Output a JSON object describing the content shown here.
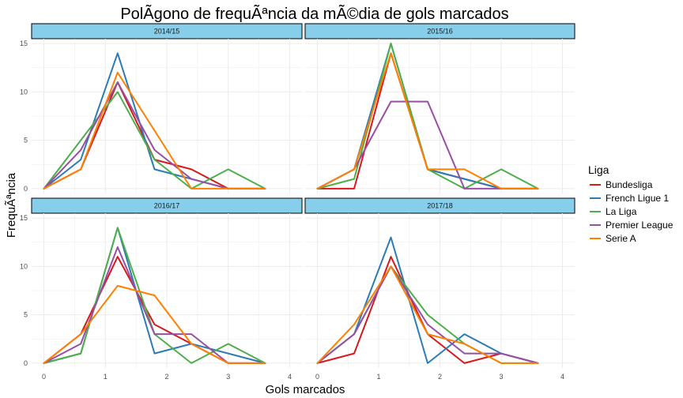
{
  "title": "PolÃ­gono de frequÃªncia da mÃ©dia de gols marcados",
  "xlabel": "Gols marcados",
  "ylabel": "FrequÃªncia",
  "legend": {
    "title": "Liga",
    "position": "right"
  },
  "colors": {
    "Bundesliga": "#d7191c",
    "French Ligue 1": "#2c7bb6",
    "La Liga": "#4daf4a",
    "Premier League": "#984ea3",
    "Serie A": "#ff7f00",
    "strip_fill": "#87ceeb",
    "grid": "#ebebeb"
  },
  "chart_data": {
    "type": "line",
    "facet": "season",
    "title": "PolÃ­gono de frequÃªncia da mÃ©dia de gols marcados",
    "xlabel": "Gols marcados",
    "ylabel": "FrequÃªncia",
    "xlim": [
      -0.2,
      4.2
    ],
    "ylim": [
      -0.5,
      15.5
    ],
    "x_ticks": [
      0,
      1,
      2,
      3,
      4
    ],
    "y_ticks": [
      0,
      5,
      10,
      15
    ],
    "grid": true,
    "x": [
      0,
      0.6,
      1.2,
      1.8,
      2.4,
      3.0,
      3.6
    ],
    "panels": [
      {
        "label": "2014/15",
        "series": [
          {
            "name": "Bundesliga",
            "values": [
              0,
              2,
              11,
              3,
              2,
              0,
              0
            ]
          },
          {
            "name": "French Ligue 1",
            "values": [
              0,
              3,
              14,
              2,
              1,
              0,
              0
            ]
          },
          {
            "name": "La Liga",
            "values": [
              0,
              5,
              10,
              3,
              0,
              2,
              0
            ]
          },
          {
            "name": "Premier League",
            "values": [
              0,
              4,
              11,
              4,
              1,
              0,
              0
            ]
          },
          {
            "name": "Serie A",
            "values": [
              0,
              2,
              12,
              6,
              0,
              0,
              0
            ]
          }
        ]
      },
      {
        "label": "2015/16",
        "series": [
          {
            "name": "Bundesliga",
            "values": [
              0,
              0,
              14,
              2,
              1,
              0,
              0
            ]
          },
          {
            "name": "French Ligue 1",
            "values": [
              0,
              2,
              15,
              2,
              1,
              0,
              0
            ]
          },
          {
            "name": "La Liga",
            "values": [
              0,
              1,
              15,
              2,
              0,
              2,
              0
            ]
          },
          {
            "name": "Premier League",
            "values": [
              0,
              2,
              9,
              9,
              0,
              0,
              0
            ]
          },
          {
            "name": "Serie A",
            "values": [
              0,
              2,
              14,
              2,
              2,
              0,
              0
            ]
          }
        ]
      },
      {
        "label": "2016/17",
        "series": [
          {
            "name": "Bundesliga",
            "values": [
              0,
              3,
              11,
              4,
              2,
              0,
              0
            ]
          },
          {
            "name": "French Ligue 1",
            "values": [
              0,
              1,
              14,
              1,
              2,
              1,
              0
            ]
          },
          {
            "name": "La Liga",
            "values": [
              0,
              1,
              14,
              3,
              0,
              2,
              0
            ]
          },
          {
            "name": "Premier League",
            "values": [
              0,
              2,
              12,
              3,
              3,
              0,
              0
            ]
          },
          {
            "name": "Serie A",
            "values": [
              0,
              3,
              8,
              7,
              2,
              0,
              0
            ]
          }
        ]
      },
      {
        "label": "2017/18",
        "series": [
          {
            "name": "Bundesliga",
            "values": [
              0,
              1,
              11,
              3,
              0,
              1,
              0
            ]
          },
          {
            "name": "French Ligue 1",
            "values": [
              0,
              3,
              13,
              0,
              3,
              1,
              0
            ]
          },
          {
            "name": "La Liga",
            "values": [
              0,
              3,
              10,
              5,
              2,
              0,
              0
            ]
          },
          {
            "name": "Premier League",
            "values": [
              0,
              3,
              10,
              4,
              1,
              1,
              0
            ]
          },
          {
            "name": "Serie A",
            "values": [
              0,
              4,
              10,
              3,
              2,
              0,
              0
            ]
          }
        ]
      }
    ]
  }
}
